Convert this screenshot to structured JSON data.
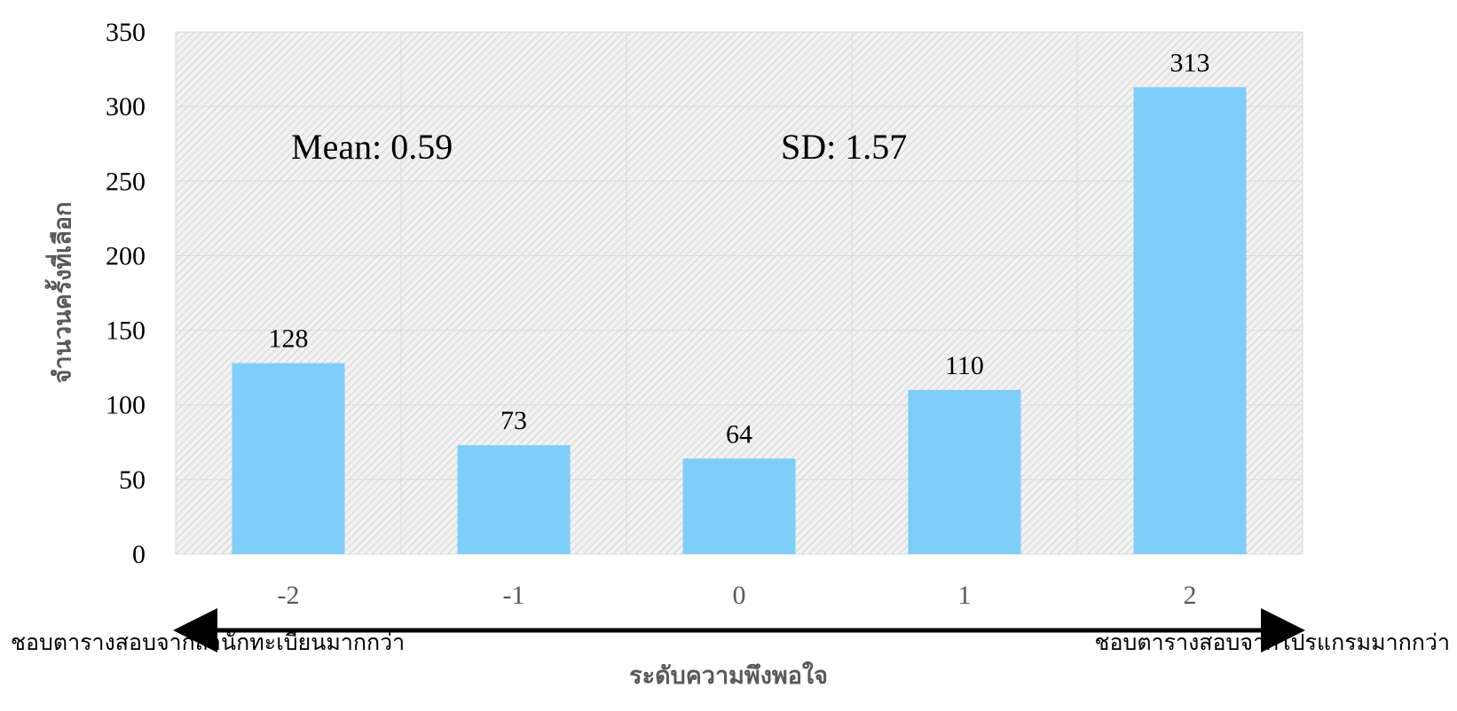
{
  "chart_data": {
    "type": "bar",
    "categories": [
      "-2",
      "-1",
      "0",
      "1",
      "2"
    ],
    "values": [
      128,
      73,
      64,
      110,
      313
    ],
    "ylim": [
      0,
      350
    ],
    "yticks": [
      0,
      50,
      100,
      150,
      200,
      250,
      300,
      350
    ],
    "ylabel": "จำนวนครั้งที่เลือก",
    "xlabel": "ระดับความพึงพอใจ",
    "left_end_label": "ชอบตารางสอบจากสำนักทะเบียนมากกว่า",
    "right_end_label": "ชอบตารางสอบจากโปรแกรมมากกว่า",
    "annotations": {
      "mean": "Mean: 0.59",
      "sd": "SD: 1.57"
    },
    "grid": true,
    "bar_color": "#7ECEF9",
    "plot_background": "hatched light gray"
  }
}
